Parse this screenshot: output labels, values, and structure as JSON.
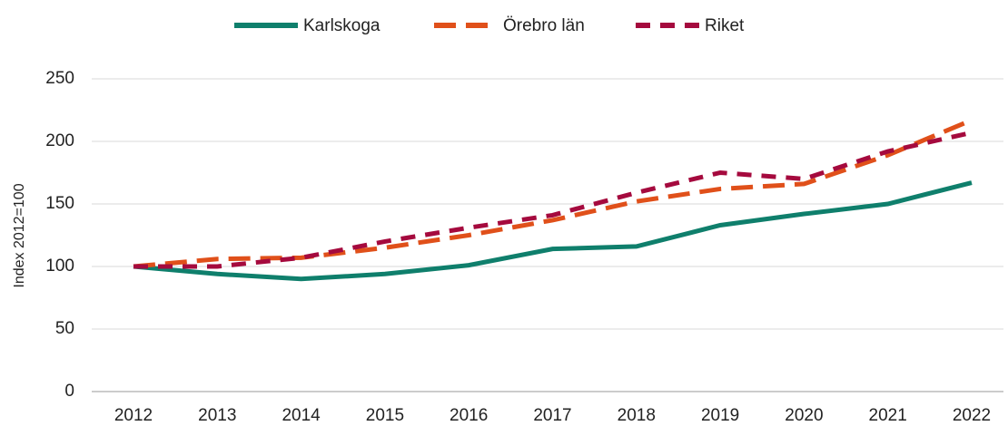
{
  "chart_data": {
    "type": "line",
    "y_label": "Index 2012=100",
    "categories": [
      "2012",
      "2013",
      "2014",
      "2015",
      "2016",
      "2017",
      "2018",
      "2019",
      "2020",
      "2021",
      "2022"
    ],
    "series": [
      {
        "name": "Karlskoga",
        "color": "#0f7f6c",
        "dash": "solid",
        "values": [
          100,
          94,
          90,
          94,
          101,
          114,
          116,
          133,
          142,
          150,
          167
        ]
      },
      {
        "name": "Örebro län",
        "color": "#e0501a",
        "dash": "dashed",
        "values": [
          100,
          106,
          107,
          115,
          125,
          137,
          152,
          162,
          166,
          189,
          217
        ]
      },
      {
        "name": "Riket",
        "color": "#a50a3e",
        "dash": "dashed",
        "values": [
          100,
          100,
          107,
          120,
          131,
          141,
          159,
          175,
          170,
          192,
          207
        ]
      }
    ],
    "ylim": [
      0,
      250
    ],
    "yticks": [
      0,
      50,
      100,
      150,
      200,
      250
    ],
    "grid": true,
    "legend": "top"
  }
}
